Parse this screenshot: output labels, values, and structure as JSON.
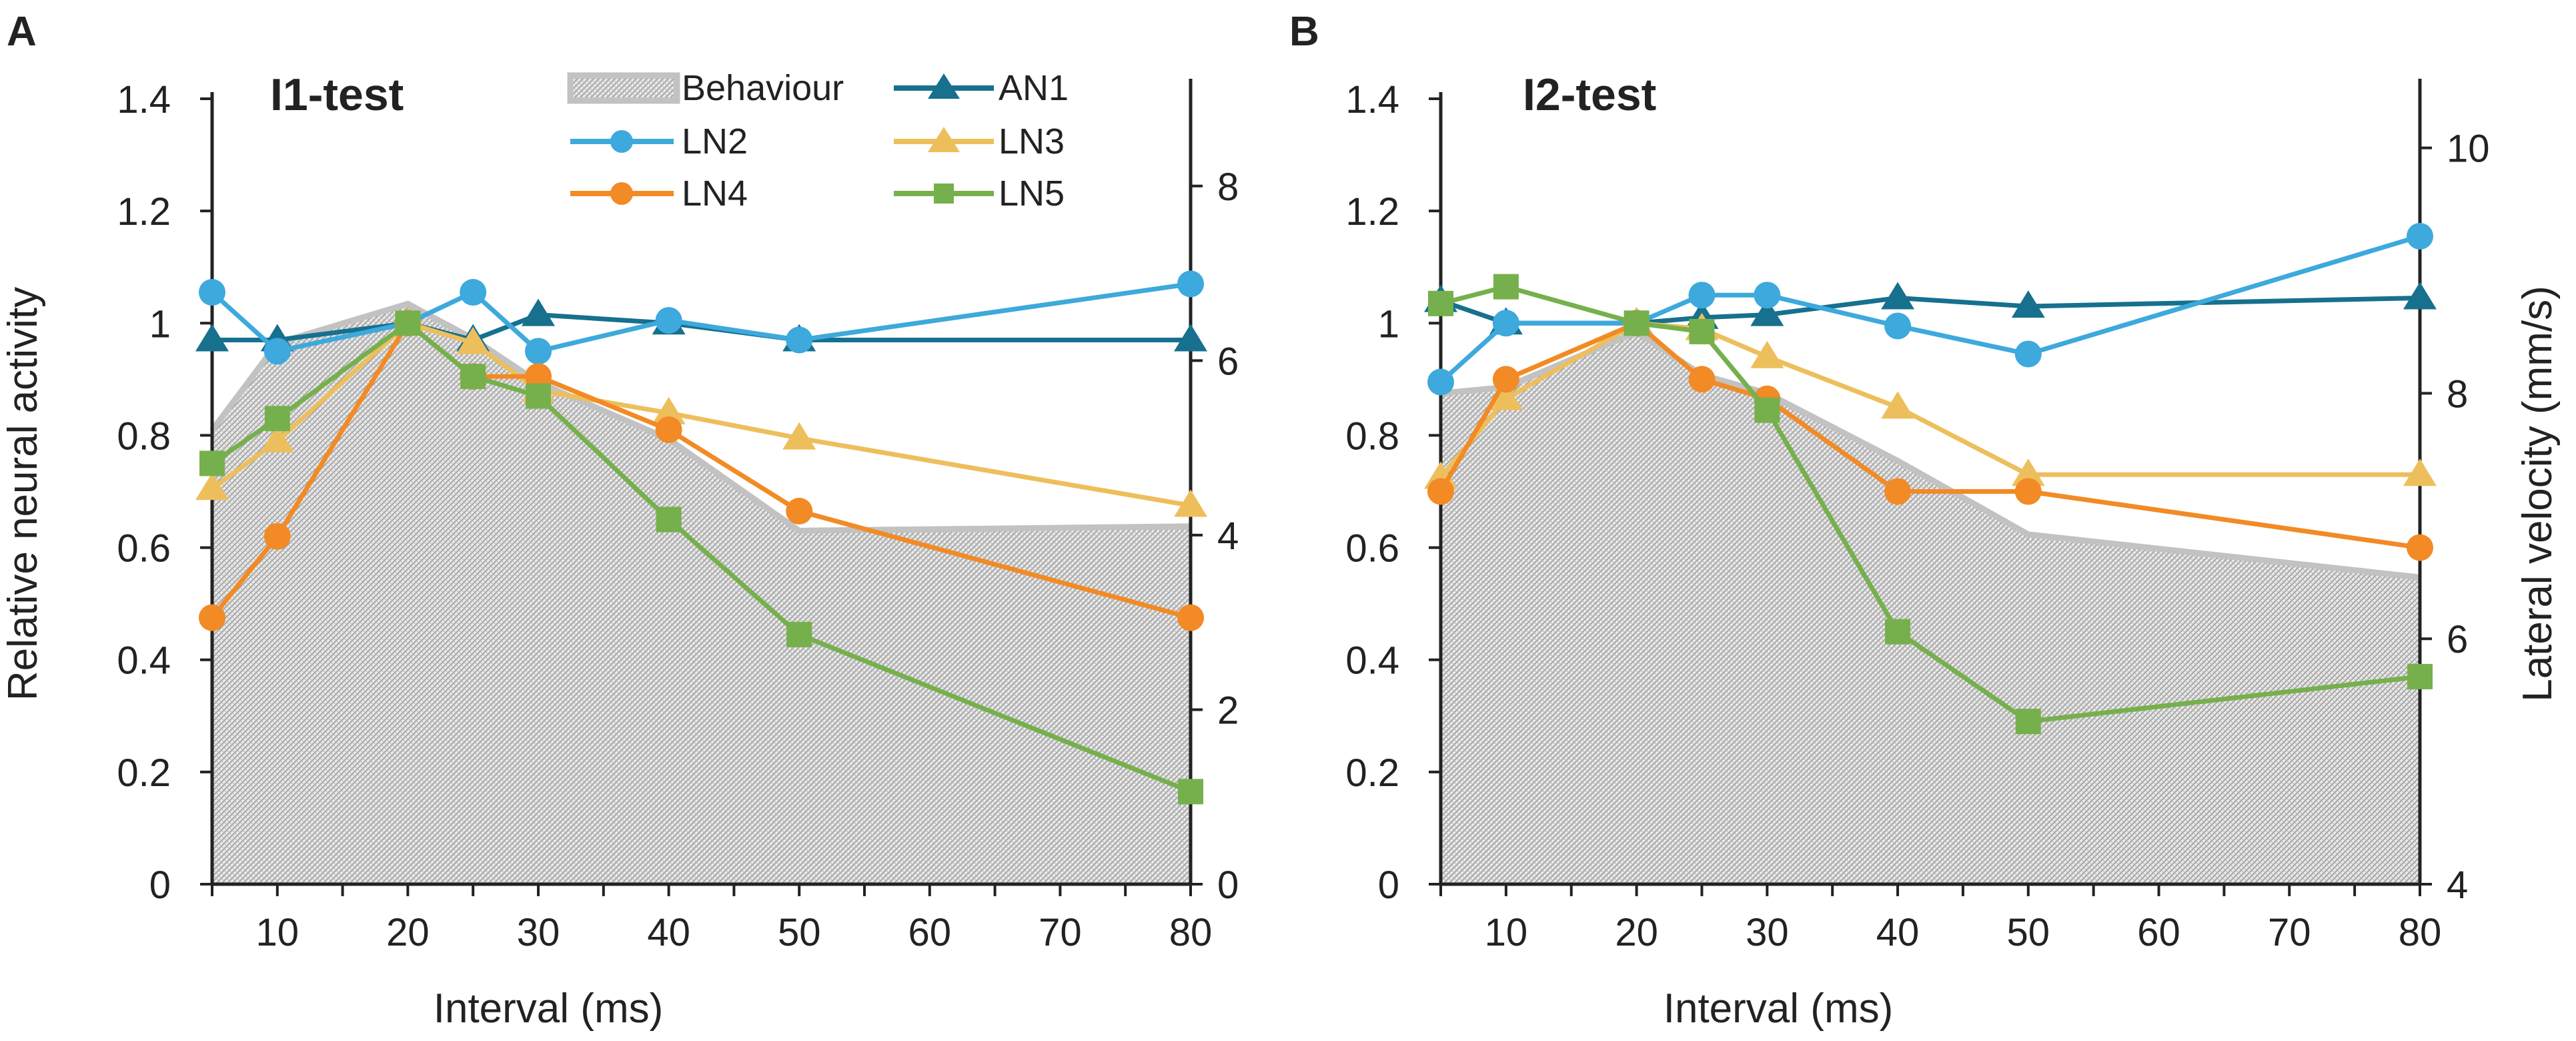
{
  "colors": {
    "Behaviour_fill": "#d6d6d6",
    "Behaviour_line": "#c2c2c2",
    "AN1": "#16708e",
    "LN2": "#3da9dc",
    "LN3": "#edbf5c",
    "LN4": "#f28a25",
    "LN5": "#76b04c",
    "axis": "#222222"
  },
  "legend": {
    "items": [
      {
        "key": "Behaviour",
        "label": "Behaviour",
        "marker": "area"
      },
      {
        "key": "AN1",
        "label": "AN1",
        "marker": "triangle"
      },
      {
        "key": "LN2",
        "label": "LN2",
        "marker": "circle"
      },
      {
        "key": "LN3",
        "label": "LN3",
        "marker": "triangle"
      },
      {
        "key": "LN4",
        "label": "LN4",
        "marker": "circle"
      },
      {
        "key": "LN5",
        "label": "LN5",
        "marker": "square"
      }
    ]
  },
  "chart_data": [
    {
      "panel_letter": "A",
      "title": "I1-test",
      "type": "line",
      "xlabel": "Interval (ms)",
      "ylabel": "Relative neural activity",
      "y2label": "",
      "xlim": [
        5,
        80
      ],
      "xticks": [
        10,
        20,
        30,
        40,
        50,
        60,
        70,
        80
      ],
      "xtick_labels": [
        "10",
        "20",
        "30",
        "40",
        "50",
        "60",
        "70",
        "80"
      ],
      "ylim": [
        0,
        1.4
      ],
      "yticks": [
        0,
        0.2,
        0.4,
        0.6,
        0.8,
        1,
        1.2,
        1.4
      ],
      "ytick_labels": [
        "0",
        "0.2",
        "0.4",
        "0.6",
        "0.8",
        "1",
        "1.2",
        "1.4"
      ],
      "y2lim": [
        0,
        9
      ],
      "y2ticks": [
        0,
        2,
        4,
        6,
        8
      ],
      "y2tick_labels": [
        "0",
        "2",
        "4",
        "6",
        "8"
      ],
      "behaviour": {
        "x": [
          5,
          10,
          20,
          25,
          30,
          40,
          50,
          80
        ],
        "y2": [
          5.2,
          6.2,
          6.65,
          6.25,
          5.75,
          5.1,
          4.05,
          4.1
        ]
      },
      "series": [
        {
          "name": "AN1",
          "x": [
            5,
            10,
            20,
            25,
            30,
            40,
            50,
            80
          ],
          "y": [
            0.97,
            0.97,
            1.0,
            0.97,
            1.015,
            1.0,
            0.97,
            0.97
          ]
        },
        {
          "name": "LN2",
          "x": [
            5,
            10,
            20,
            25,
            30,
            40,
            50,
            80
          ],
          "y": [
            1.055,
            0.95,
            1.0,
            1.055,
            0.95,
            1.005,
            0.97,
            1.07
          ]
        },
        {
          "name": "LN3",
          "x": [
            5,
            10,
            20,
            25,
            30,
            40,
            50,
            80
          ],
          "y": [
            0.705,
            0.79,
            1.0,
            0.965,
            0.88,
            0.84,
            0.795,
            0.675
          ]
        },
        {
          "name": "LN4",
          "x": [
            5,
            10,
            20,
            25,
            30,
            40,
            50,
            80
          ],
          "y": [
            0.475,
            0.62,
            1.0,
            0.905,
            0.905,
            0.81,
            0.665,
            0.475
          ]
        },
        {
          "name": "LN5",
          "x": [
            5,
            10,
            20,
            25,
            30,
            40,
            50,
            80
          ],
          "y": [
            0.75,
            0.83,
            1.0,
            0.905,
            0.87,
            0.65,
            0.445,
            0.165
          ]
        }
      ]
    },
    {
      "panel_letter": "B",
      "title": "I2-test",
      "type": "line",
      "xlabel": "Interval (ms)",
      "ylabel": "",
      "y2label": "Lateral velocity (mm/s)",
      "xlim": [
        5,
        80
      ],
      "xticks": [
        10,
        20,
        30,
        40,
        50,
        60,
        70,
        80
      ],
      "xtick_labels": [
        "10",
        "20",
        "30",
        "40",
        "50",
        "60",
        "70",
        "80"
      ],
      "ylim": [
        0,
        1.4
      ],
      "yticks": [
        0,
        0.2,
        0.4,
        0.6,
        0.8,
        1,
        1.2,
        1.4
      ],
      "ytick_labels": [
        "0",
        "0.2",
        "0.4",
        "0.6",
        "0.8",
        "1",
        "1.2",
        "1.4"
      ],
      "y2lim": [
        4,
        10.4
      ],
      "y2ticks": [
        4,
        6,
        8,
        10
      ],
      "y2tick_labels": [
        "4",
        "6",
        "8",
        "10"
      ],
      "behaviour": {
        "x": [
          5,
          10,
          20,
          25,
          30,
          40,
          50,
          80
        ],
        "y2": [
          8.0,
          8.05,
          8.5,
          8.15,
          8.0,
          7.45,
          6.85,
          6.5
        ]
      },
      "series": [
        {
          "name": "AN1",
          "x": [
            5,
            10,
            20,
            25,
            30,
            40,
            50,
            80
          ],
          "y": [
            1.04,
            1.0,
            1.0,
            1.01,
            1.015,
            1.045,
            1.03,
            1.045
          ]
        },
        {
          "name": "LN2",
          "x": [
            5,
            10,
            20,
            25,
            30,
            40,
            50,
            80
          ],
          "y": [
            0.895,
            1.0,
            1.0,
            1.05,
            1.05,
            0.995,
            0.945,
            1.155
          ]
        },
        {
          "name": "LN3",
          "x": [
            5,
            10,
            20,
            25,
            30,
            40,
            50,
            80
          ],
          "y": [
            0.725,
            0.865,
            1.0,
            0.99,
            0.94,
            0.85,
            0.73,
            0.73
          ]
        },
        {
          "name": "LN4",
          "x": [
            5,
            10,
            20,
            25,
            30,
            40,
            50,
            80
          ],
          "y": [
            0.7,
            0.9,
            1.0,
            0.9,
            0.865,
            0.7,
            0.7,
            0.6
          ]
        },
        {
          "name": "LN5",
          "x": [
            5,
            10,
            20,
            25,
            30,
            40,
            50,
            80
          ],
          "y": [
            1.035,
            1.065,
            1.0,
            0.985,
            0.845,
            0.45,
            0.29,
            0.37
          ]
        }
      ]
    }
  ]
}
